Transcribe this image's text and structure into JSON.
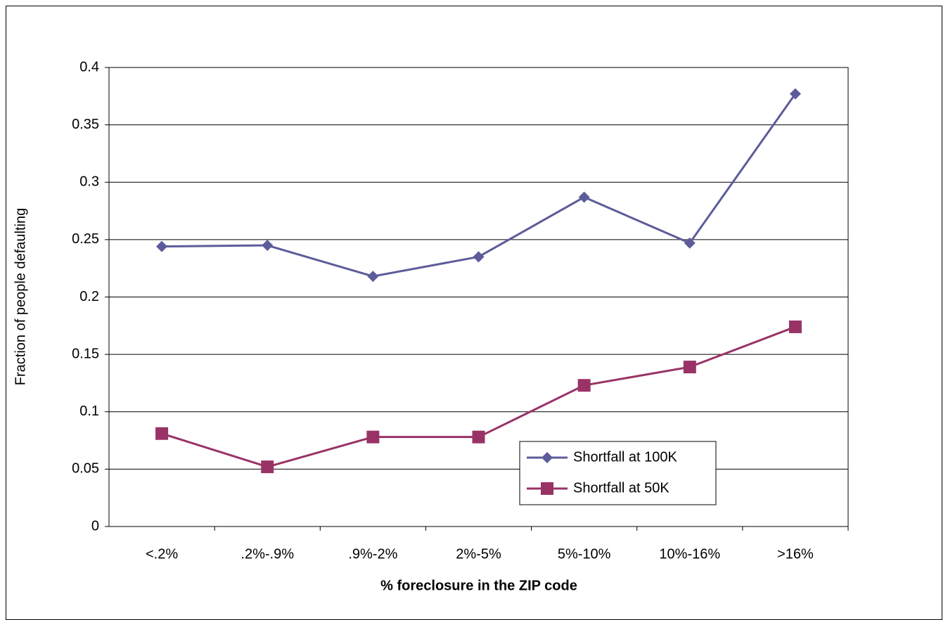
{
  "chart_data": {
    "type": "line",
    "x_label": "% foreclosure in the ZIP code",
    "y_label": "Fraction of people defaulting",
    "categories": [
      "<.2%",
      ".2%-.9%",
      ".9%-2%",
      "2%-5%",
      "5%-10%",
      "10%-16%",
      ">16%"
    ],
    "series": [
      {
        "name": "Shortfall at 100K",
        "color": "#5c5c9a",
        "marker": "diamond",
        "values": [
          0.244,
          0.245,
          0.218,
          0.235,
          0.287,
          0.247,
          0.377
        ]
      },
      {
        "name": "Shortfall at 50K",
        "color": "#993366",
        "marker": "square",
        "values": [
          0.081,
          0.052,
          0.078,
          0.078,
          0.123,
          0.139,
          0.174
        ]
      }
    ],
    "ylim": [
      0,
      0.4
    ],
    "yticks": [
      0,
      0.05,
      0.1,
      0.15,
      0.2,
      0.25,
      0.3,
      0.35,
      0.4
    ],
    "grid": true,
    "legend": "lower right"
  }
}
